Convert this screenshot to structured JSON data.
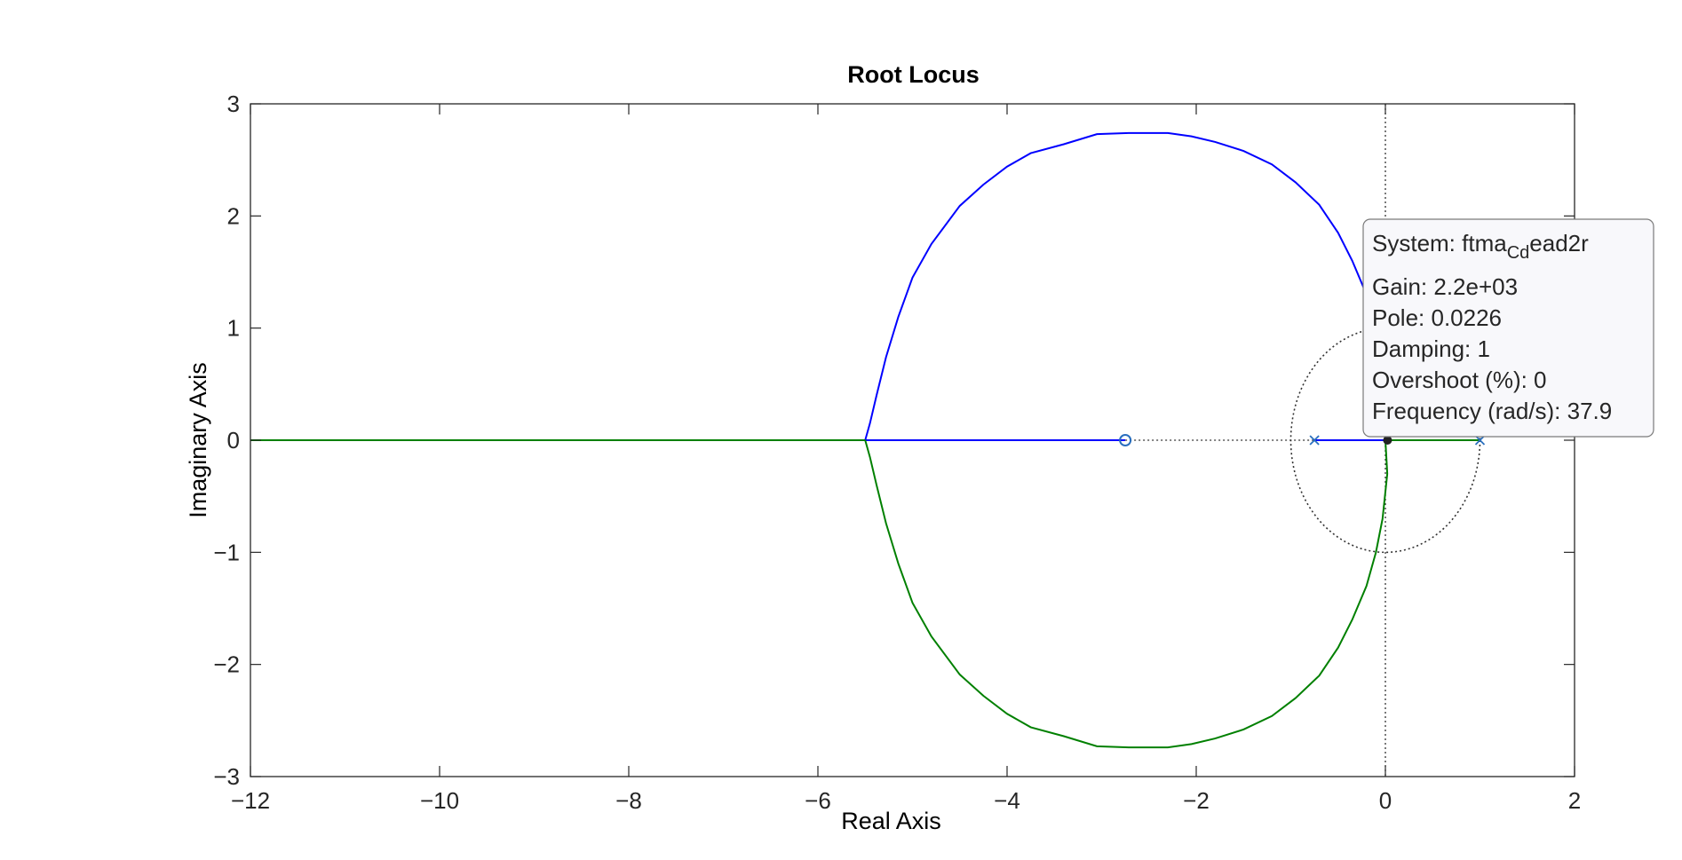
{
  "chart_data": {
    "type": "line",
    "title": "Root Locus",
    "xlabel": "Real Axis",
    "ylabel": "Imaginary Axis",
    "xlim": [
      -12,
      2
    ],
    "ylim": [
      -3,
      3
    ],
    "xticks": [
      -12,
      -10,
      -8,
      -6,
      -4,
      -2,
      0,
      2
    ],
    "yticks": [
      -3,
      -2,
      -1,
      0,
      1,
      2,
      3
    ],
    "xtick_labels": [
      "−12",
      "−10",
      "−8",
      "−6",
      "−4",
      "−2",
      "0",
      "2"
    ],
    "ytick_labels": [
      "−3",
      "−2",
      "−1",
      "0",
      "1",
      "2",
      "3"
    ],
    "grid": false,
    "series": [
      {
        "color": "#0000ff",
        "x": [
          0,
          0.02,
          -0.03,
          -0.1,
          -0.2,
          -0.35,
          -0.5,
          -0.7,
          -0.95,
          -1.2,
          -1.5,
          -1.8,
          -2.05,
          -2.3,
          -2.7,
          -3.05,
          -3.4,
          -3.75,
          -4.0,
          -4.25,
          -4.5,
          -4.8,
          -5.0,
          -5.15,
          -5.28,
          -5.38,
          -5.45,
          -5.5
        ],
        "y": [
          0,
          0.3,
          0.7,
          1.0,
          1.3,
          1.6,
          1.85,
          2.1,
          2.3,
          2.46,
          2.58,
          2.66,
          2.71,
          2.74,
          2.74,
          2.73,
          2.64,
          2.56,
          2.44,
          2.28,
          2.09,
          1.75,
          1.45,
          1.1,
          0.74,
          0.4,
          0.15,
          0
        ],
        "marker": null
      },
      {
        "color": "#0000ff",
        "x": [
          -5.5,
          -2.75
        ],
        "y": [
          0,
          0
        ]
      },
      {
        "color": "#0000ff",
        "x": [
          -0.75,
          0.02
        ],
        "y": [
          0,
          0
        ]
      },
      {
        "color": "#008000",
        "x": [
          0,
          0.02,
          -0.03,
          -0.1,
          -0.2,
          -0.35,
          -0.5,
          -0.7,
          -0.95,
          -1.2,
          -1.5,
          -1.8,
          -2.05,
          -2.3,
          -2.7,
          -3.05,
          -3.4,
          -3.75,
          -4.0,
          -4.25,
          -4.5,
          -4.8,
          -5.0,
          -5.15,
          -5.28,
          -5.38,
          -5.45,
          -5.5
        ],
        "y": [
          0,
          -0.3,
          -0.7,
          -1.0,
          -1.3,
          -1.6,
          -1.85,
          -2.1,
          -2.3,
          -2.46,
          -2.58,
          -2.66,
          -2.71,
          -2.74,
          -2.74,
          -2.73,
          -2.64,
          -2.56,
          -2.44,
          -2.28,
          -2.09,
          -1.75,
          -1.45,
          -1.1,
          -0.74,
          -0.4,
          -0.15,
          0
        ]
      },
      {
        "color": "#008000",
        "x": [
          -12,
          -5.5
        ],
        "y": [
          0,
          0
        ]
      },
      {
        "color": "#008000",
        "x": [
          0.02,
          1.0
        ],
        "y": [
          0,
          0
        ]
      }
    ],
    "poles": [
      [
        -0.75,
        0
      ],
      [
        1.0,
        0
      ]
    ],
    "zeros": [
      [
        -2.75,
        0
      ]
    ],
    "selected_point": [
      0.0226,
      0
    ],
    "unit_circle": true,
    "datatip": {
      "system_prefix": "System: ftma",
      "system_sub": "Cd",
      "system_suffix": "ead2r",
      "gain": "Gain: 2.2e+03",
      "pole": "Pole: 0.0226",
      "damping": "Damping: 1",
      "overshoot": "Overshoot (%): 0",
      "frequency": "Frequency (rad/s): 37.9"
    }
  }
}
